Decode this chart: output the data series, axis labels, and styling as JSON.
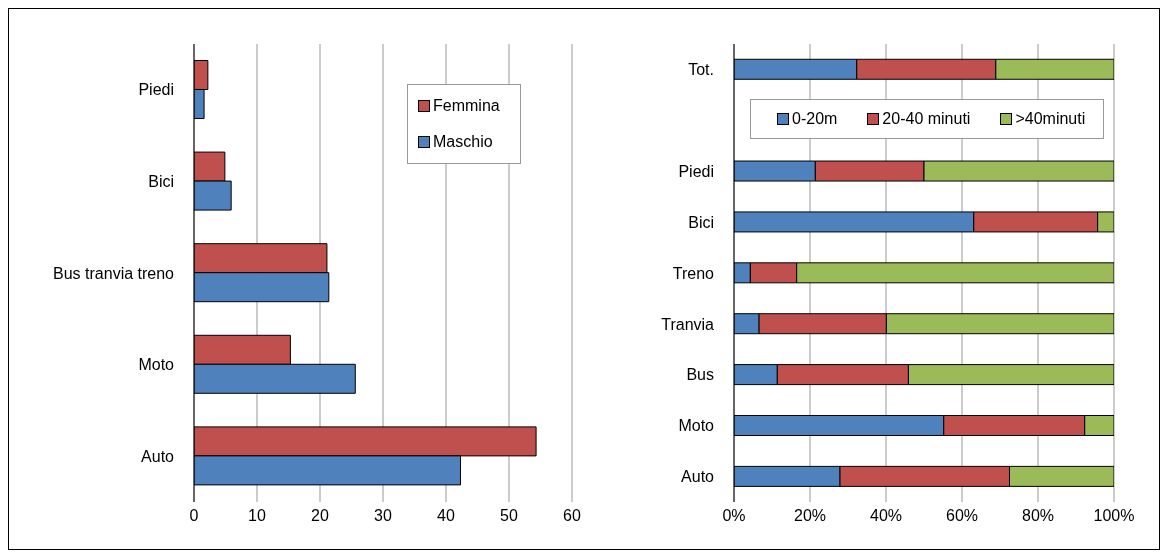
{
  "chart_data": [
    {
      "type": "bar",
      "orientation": "horizontal",
      "categories": [
        "Piedi",
        "Bici",
        "Bus tranvia treno",
        "Moto",
        "Auto"
      ],
      "series": [
        {
          "name": "Femmina",
          "color": "#c0504d",
          "values": [
            2.2,
            4.9,
            21.1,
            15.3,
            54.3
          ]
        },
        {
          "name": "Maschio",
          "color": "#4f81bd",
          "values": [
            1.6,
            5.9,
            21.4,
            25.6,
            42.3
          ]
        }
      ],
      "xlim": [
        0,
        60
      ],
      "xticks": [
        0,
        10,
        20,
        30,
        40,
        50,
        60
      ],
      "grid": "x",
      "legend": "top right"
    },
    {
      "type": "bar",
      "orientation": "horizontal",
      "stacked": true,
      "categories": [
        "Tot.",
        null,
        "Piedi",
        "Bici",
        "Treno",
        "Tranvia",
        "Bus",
        "Moto",
        "Auto"
      ],
      "series": [
        {
          "name": "0-20m",
          "color": "#4f81bd",
          "values": [
            32.3,
            null,
            21.4,
            63.1,
            4.3,
            6.6,
            11.4,
            55.2,
            27.9
          ]
        },
        {
          "name": "20-40 minuti",
          "color": "#c0504d",
          "values": [
            36.6,
            null,
            28.6,
            32.6,
            12.2,
            33.5,
            34.5,
            37.1,
            44.6
          ]
        },
        {
          "name": ">40minuti",
          "color": "#9bbb59",
          "values": [
            31.1,
            null,
            50.0,
            4.3,
            83.5,
            59.9,
            54.1,
            7.7,
            27.5
          ]
        }
      ],
      "xlim": [
        0,
        100
      ],
      "xticks": [
        {
          "value": 0,
          "label": "0%"
        },
        {
          "value": 20,
          "label": "20%"
        },
        {
          "value": 40,
          "label": "40%"
        },
        {
          "value": 60,
          "label": "60%"
        },
        {
          "value": 80,
          "label": "80%"
        },
        {
          "value": 100,
          "label": "100%"
        }
      ],
      "grid": "x",
      "legend": "top"
    }
  ]
}
